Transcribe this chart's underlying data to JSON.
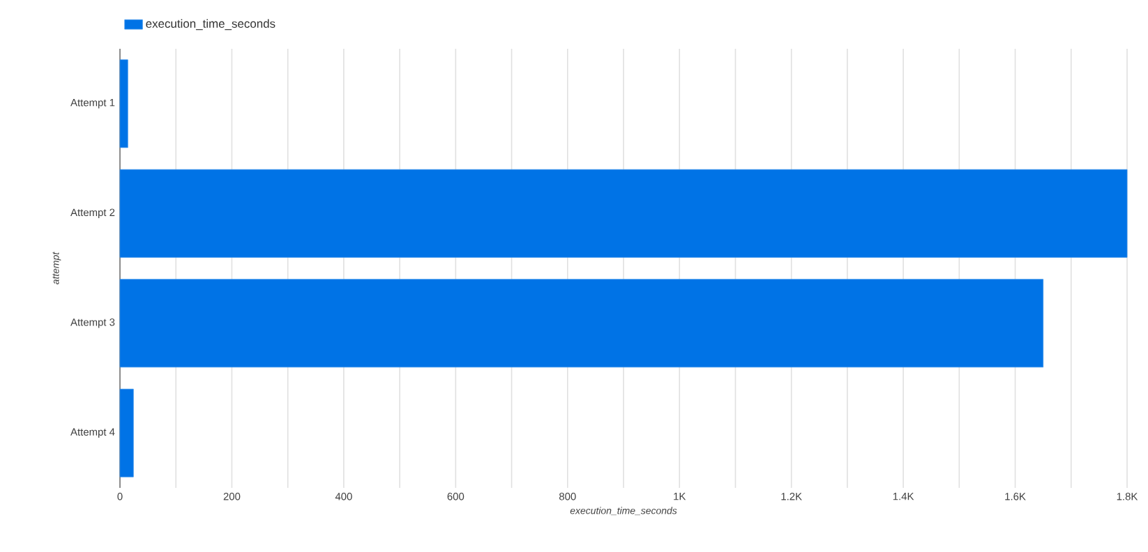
{
  "chart_data": {
    "type": "bar",
    "orientation": "horizontal",
    "categories": [
      "Attempt 1",
      "Attempt 2",
      "Attempt 3",
      "Attempt 4"
    ],
    "series": [
      {
        "name": "execution_time_seconds",
        "color": "#0073e6",
        "values": [
          14,
          1800,
          1650,
          24
        ]
      }
    ],
    "xlim": [
      0,
      1800
    ],
    "xticks": [
      0,
      {
        "value": 100,
        "label": null
      },
      200,
      {
        "value": 300,
        "label": null
      },
      400,
      {
        "value": 500,
        "label": null
      },
      600,
      {
        "value": 700,
        "label": null
      },
      800,
      {
        "value": 900,
        "label": null
      },
      {
        "value": 1000,
        "label": "1K"
      },
      {
        "value": 1100,
        "label": null
      },
      {
        "value": 1200,
        "label": "1.2K"
      },
      {
        "value": 1300,
        "label": null
      },
      {
        "value": 1400,
        "label": "1.4K"
      },
      {
        "value": 1500,
        "label": null
      },
      {
        "value": 1600,
        "label": "1.6K"
      },
      {
        "value": 1700,
        "label": null
      },
      {
        "value": 1800,
        "label": "1.8K"
      }
    ],
    "xlabel": "execution_time_seconds",
    "ylabel": "attempt",
    "grid": "x",
    "legend": "top left"
  }
}
